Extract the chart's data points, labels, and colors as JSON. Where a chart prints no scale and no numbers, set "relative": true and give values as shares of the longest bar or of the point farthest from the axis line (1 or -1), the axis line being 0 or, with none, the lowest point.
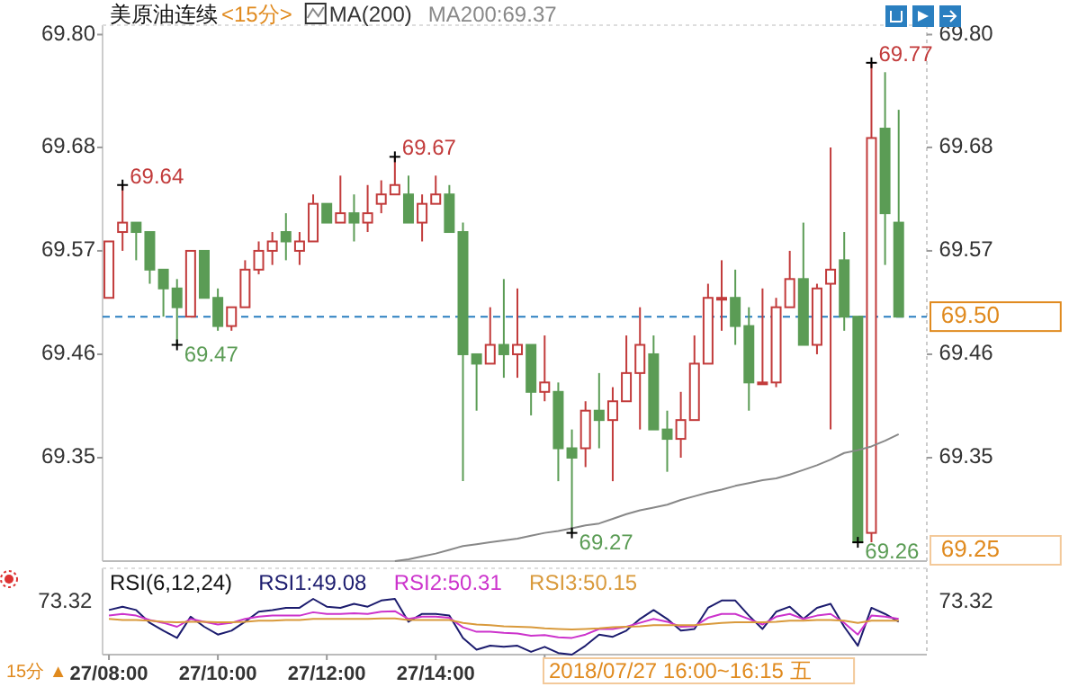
{
  "chart_data": [
    {
      "type": "candlestick",
      "title": "美原油连续",
      "subtitle": "<15分>",
      "x": [
        "2018-07-27T08:00",
        "2018-07-27T08:15",
        "2018-07-27T08:30",
        "2018-07-27T08:45",
        "2018-07-27T09:00",
        "2018-07-27T09:15",
        "2018-07-27T09:30",
        "2018-07-27T09:45",
        "2018-07-27T10:00",
        "2018-07-27T10:15",
        "2018-07-27T10:30",
        "2018-07-27T10:45",
        "2018-07-27T11:00",
        "2018-07-27T11:15",
        "2018-07-27T11:30",
        "2018-07-27T11:45",
        "2018-07-27T12:00",
        "2018-07-27T12:15",
        "2018-07-27T12:30",
        "2018-07-27T12:45",
        "2018-07-27T13:00",
        "2018-07-27T13:15",
        "2018-07-27T13:30",
        "2018-07-27T13:45",
        "2018-07-27T14:00",
        "2018-07-27T14:15",
        "2018-07-27T14:30",
        "2018-07-27T14:45",
        "2018-07-27T15:00",
        "2018-07-27T15:15",
        "2018-07-27T15:30",
        "2018-07-27T15:45",
        "2018-07-27T16:00",
        "2018-07-27T16:15",
        "2018-07-27T16:30",
        "2018-07-27T16:45",
        "2018-07-27T17:00",
        "2018-07-27T17:15",
        "2018-07-27T17:30",
        "2018-07-27T17:45",
        "2018-07-27T18:00",
        "2018-07-27T18:15",
        "2018-07-27T18:30",
        "2018-07-27T18:45",
        "2018-07-27T19:00",
        "2018-07-27T19:15",
        "2018-07-27T19:30",
        "2018-07-27T19:45",
        "2018-07-27T20:00",
        "2018-07-27T20:15",
        "2018-07-27T20:30",
        "2018-07-27T20:45",
        "2018-07-27T21:00",
        "2018-07-27T21:15",
        "2018-07-27T21:30",
        "2018-07-27T21:45",
        "2018-07-27T22:00",
        "2018-07-27T22:15",
        "2018-07-27T22:30"
      ],
      "ohlc": [
        [
          69.52,
          69.58,
          69.52,
          69.58
        ],
        [
          69.59,
          69.64,
          69.57,
          69.6
        ],
        [
          69.6,
          69.6,
          69.56,
          69.59
        ],
        [
          69.59,
          69.59,
          69.535,
          69.55
        ],
        [
          69.55,
          69.55,
          69.5,
          69.53
        ],
        [
          69.53,
          69.54,
          69.47,
          69.51
        ],
        [
          69.5,
          69.57,
          69.5,
          69.57
        ],
        [
          69.57,
          69.57,
          69.52,
          69.52
        ],
        [
          69.52,
          69.53,
          69.485,
          69.49
        ],
        [
          69.49,
          69.51,
          69.485,
          69.51
        ],
        [
          69.51,
          69.56,
          69.51,
          69.55
        ],
        [
          69.55,
          69.58,
          69.545,
          69.57
        ],
        [
          69.57,
          69.59,
          69.555,
          69.58
        ],
        [
          69.59,
          69.61,
          69.56,
          69.58
        ],
        [
          69.57,
          69.59,
          69.555,
          69.58
        ],
        [
          69.58,
          69.63,
          69.58,
          69.62
        ],
        [
          69.62,
          69.62,
          69.6,
          69.6
        ],
        [
          69.6,
          69.65,
          69.6,
          69.61
        ],
        [
          69.61,
          69.63,
          69.58,
          69.6
        ],
        [
          69.6,
          69.64,
          69.59,
          69.61
        ],
        [
          69.62,
          69.645,
          69.61,
          69.63
        ],
        [
          69.63,
          69.67,
          69.63,
          69.64
        ],
        [
          69.63,
          69.65,
          69.6,
          69.6
        ],
        [
          69.6,
          69.63,
          69.58,
          69.62
        ],
        [
          69.62,
          69.65,
          69.62,
          69.63
        ],
        [
          69.63,
          69.64,
          69.59,
          69.59
        ],
        [
          69.59,
          69.6,
          69.325,
          69.46
        ],
        [
          69.46,
          69.46,
          69.4,
          69.45
        ],
        [
          69.45,
          69.51,
          69.45,
          69.47
        ],
        [
          69.47,
          69.54,
          69.435,
          69.46
        ],
        [
          69.46,
          69.53,
          69.435,
          69.47
        ],
        [
          69.47,
          69.47,
          69.395,
          69.42
        ],
        [
          69.42,
          69.48,
          69.41,
          69.43
        ],
        [
          69.42,
          69.43,
          69.325,
          69.36
        ],
        [
          69.36,
          69.38,
          69.27,
          69.35
        ],
        [
          69.36,
          69.41,
          69.34,
          69.4
        ],
        [
          69.4,
          69.44,
          69.36,
          69.39
        ],
        [
          69.39,
          69.425,
          69.325,
          69.41
        ],
        [
          69.41,
          69.48,
          69.41,
          69.44
        ],
        [
          69.44,
          69.51,
          69.38,
          69.47
        ],
        [
          69.46,
          69.48,
          69.38,
          69.38
        ],
        [
          69.38,
          69.4,
          69.335,
          69.37
        ],
        [
          69.37,
          69.42,
          69.35,
          69.39
        ],
        [
          69.39,
          69.48,
          69.39,
          69.45
        ],
        [
          69.45,
          69.535,
          69.45,
          69.52
        ],
        [
          69.52,
          69.56,
          69.485,
          69.52
        ],
        [
          69.52,
          69.55,
          69.47,
          69.49
        ],
        [
          69.49,
          69.51,
          69.4,
          69.43
        ],
        [
          69.43,
          69.53,
          69.43,
          69.43
        ],
        [
          69.43,
          69.52,
          69.425,
          69.51
        ],
        [
          69.51,
          69.57,
          69.51,
          69.54
        ],
        [
          69.54,
          69.6,
          69.47,
          69.47
        ],
        [
          69.47,
          69.535,
          69.46,
          69.53
        ],
        [
          69.535,
          69.68,
          69.38,
          69.55
        ],
        [
          69.56,
          69.59,
          69.485,
          69.5
        ],
        [
          69.5,
          69.5,
          69.26,
          69.26
        ],
        [
          69.27,
          69.77,
          69.26,
          69.69
        ],
        [
          69.7,
          69.76,
          69.555,
          69.61
        ],
        [
          69.6,
          69.72,
          69.5,
          69.5
        ]
      ],
      "series": [
        {
          "name": "MA(200)",
          "type": "line",
          "color": "#888888",
          "values": [
            null,
            null,
            null,
            null,
            null,
            null,
            null,
            null,
            null,
            null,
            null,
            null,
            null,
            null,
            null,
            null,
            null,
            null,
            null,
            null,
            null,
            69.24,
            69.242,
            69.245,
            69.248,
            69.252,
            69.256,
            69.258,
            69.26,
            69.262,
            69.264,
            69.267,
            69.27,
            69.272,
            69.275,
            69.278,
            69.28,
            69.285,
            69.29,
            69.294,
            69.297,
            69.3,
            69.305,
            69.309,
            69.313,
            69.316,
            69.32,
            69.323,
            69.326,
            69.328,
            69.332,
            69.337,
            69.342,
            69.348,
            69.355,
            69.358,
            69.362,
            69.368,
            69.375
          ]
        }
      ],
      "xlim": [
        "2018-07-27T07:53",
        "2018-07-27T23:01"
      ],
      "ylim": [
        69.24,
        69.81
      ],
      "yticks": [
        {
          "value": 69.8,
          "label": "69.80"
        },
        69.68,
        69.57,
        69.46,
        69.35
      ],
      "y2lim": [
        69.24,
        69.81
      ],
      "y2ticks": [
        {
          "value": 69.8,
          "label": "69.80"
        },
        69.68,
        69.57,
        69.46,
        69.35
      ],
      "tick_labels": "y",
      "legend": "top left",
      "ref_lines": [
        {
          "axis": "y",
          "value": 69.5,
          "label": "69.50",
          "color": "#2a7fc0",
          "line_style": "dashed"
        }
      ],
      "annotations": [
        "MA200:69.37",
        {
          "text": "69.64",
          "x": "2018-07-27T08:15",
          "y": 69.64
        },
        {
          "text": "69.47",
          "x": "2018-07-27T09:15",
          "y": 69.47
        },
        {
          "text": "69.67",
          "x": "2018-07-27T13:15",
          "y": 69.67
        },
        {
          "text": "69.27",
          "x": "2018-07-27T16:30",
          "y": 69.27
        },
        {
          "text": "69.77",
          "x": "2018-07-27T22:00",
          "y": 69.77
        },
        {
          "text": "69.26",
          "x": "2018-07-27T21:45",
          "y": 69.26
        },
        "69.25"
      ]
    },
    {
      "type": "line",
      "title": "RSI(6,12,24)",
      "relative": true,
      "x": [
        "2018-07-27T08:00",
        "2018-07-27T08:15",
        "2018-07-27T08:30",
        "2018-07-27T08:45",
        "2018-07-27T09:00",
        "2018-07-27T09:15",
        "2018-07-27T09:30",
        "2018-07-27T09:45",
        "2018-07-27T10:00",
        "2018-07-27T10:15",
        "2018-07-27T10:30",
        "2018-07-27T10:45",
        "2018-07-27T11:00",
        "2018-07-27T11:15",
        "2018-07-27T11:30",
        "2018-07-27T11:45",
        "2018-07-27T12:00",
        "2018-07-27T12:15",
        "2018-07-27T12:30",
        "2018-07-27T12:45",
        "2018-07-27T13:00",
        "2018-07-27T13:15",
        "2018-07-27T13:30",
        "2018-07-27T13:45",
        "2018-07-27T14:00",
        "2018-07-27T14:15",
        "2018-07-27T14:30",
        "2018-07-27T14:45",
        "2018-07-27T15:00",
        "2018-07-27T15:15",
        "2018-07-27T15:30",
        "2018-07-27T15:45",
        "2018-07-27T16:00",
        "2018-07-27T16:15",
        "2018-07-27T16:30",
        "2018-07-27T16:45",
        "2018-07-27T17:00",
        "2018-07-27T17:15",
        "2018-07-27T17:30",
        "2018-07-27T17:45",
        "2018-07-27T18:00",
        "2018-07-27T18:15",
        "2018-07-27T18:30",
        "2018-07-27T18:45",
        "2018-07-27T19:00",
        "2018-07-27T19:15",
        "2018-07-27T19:30",
        "2018-07-27T19:45",
        "2018-07-27T20:00",
        "2018-07-27T20:15",
        "2018-07-27T20:30",
        "2018-07-27T20:45",
        "2018-07-27T21:00",
        "2018-07-27T21:15",
        "2018-07-27T21:30",
        "2018-07-27T21:45",
        "2018-07-27T22:00",
        "2018-07-27T22:15",
        "2018-07-27T22:30"
      ],
      "series": [
        {
          "name": "RSI1:49.08",
          "color": "#1c1c6e",
          "values": [
            0.8,
            0.86,
            0.8,
            0.57,
            0.43,
            0.3,
            0.68,
            0.5,
            0.36,
            0.43,
            0.59,
            0.77,
            0.8,
            0.84,
            0.84,
            1,
            0.86,
            0.84,
            0.91,
            0.86,
            0.97,
            1,
            0.59,
            0.73,
            0.73,
            0.7,
            0.3,
            0.09,
            0.16,
            0.14,
            0.16,
            0.05,
            0.14,
            0.03,
            0,
            0.16,
            0.36,
            0.32,
            0.43,
            0.64,
            0.8,
            0.64,
            0.43,
            0.46,
            0.84,
            0.97,
            0.97,
            0.7,
            0.46,
            0.77,
            0.86,
            0.64,
            0.84,
            0.91,
            0.5,
            0.16,
            0.84,
            0.73,
            0.59
          ]
        },
        {
          "name": "RSI2:50.31",
          "color": "#cc33cc",
          "values": [
            0.7,
            0.73,
            0.7,
            0.62,
            0.57,
            0.5,
            0.64,
            0.59,
            0.54,
            0.57,
            0.64,
            0.68,
            0.7,
            0.7,
            0.7,
            0.76,
            0.73,
            0.73,
            0.74,
            0.73,
            0.77,
            0.78,
            0.64,
            0.68,
            0.68,
            0.66,
            0.49,
            0.41,
            0.41,
            0.39,
            0.38,
            0.34,
            0.35,
            0.31,
            0.3,
            0.36,
            0.46,
            0.46,
            0.5,
            0.57,
            0.64,
            0.59,
            0.5,
            0.51,
            0.66,
            0.73,
            0.73,
            0.64,
            0.54,
            0.68,
            0.73,
            0.64,
            0.7,
            0.73,
            0.57,
            0.36,
            0.7,
            0.68,
            0.64
          ]
        },
        {
          "name": "RSI3:50.15",
          "color": "#d99a3c",
          "values": [
            0.64,
            0.62,
            0.62,
            0.61,
            0.59,
            0.58,
            0.59,
            0.59,
            0.58,
            0.58,
            0.59,
            0.61,
            0.61,
            0.62,
            0.62,
            0.64,
            0.64,
            0.64,
            0.64,
            0.64,
            0.65,
            0.65,
            0.62,
            0.62,
            0.62,
            0.62,
            0.57,
            0.54,
            0.53,
            0.51,
            0.5,
            0.49,
            0.47,
            0.46,
            0.45,
            0.46,
            0.47,
            0.49,
            0.5,
            0.51,
            0.53,
            0.53,
            0.53,
            0.53,
            0.55,
            0.57,
            0.58,
            0.58,
            0.58,
            0.59,
            0.61,
            0.61,
            0.62,
            0.62,
            0.61,
            0.57,
            0.61,
            0.61,
            0.61
          ]
        }
      ],
      "xlim": [
        "2018-07-27T07:53",
        "2018-07-27T23:01"
      ],
      "xticks": [
        {
          "value": "2018-07-27T08:00",
          "label": "27/08:00"
        },
        {
          "value": "2018-07-27T10:00",
          "label": "27/10:00"
        },
        {
          "value": "2018-07-27T12:00",
          "label": "27/12:00"
        },
        {
          "value": "2018-07-27T14:00",
          "label": "27/14:00"
        },
        {
          "value": "2018-07-27T16:00",
          "label": null
        }
      ],
      "legend": "top left",
      "annotations": [
        "73.32",
        "73.32",
        "15分 ▲",
        "2018/07/27 16:00~16:15 五"
      ]
    }
  ]
}
